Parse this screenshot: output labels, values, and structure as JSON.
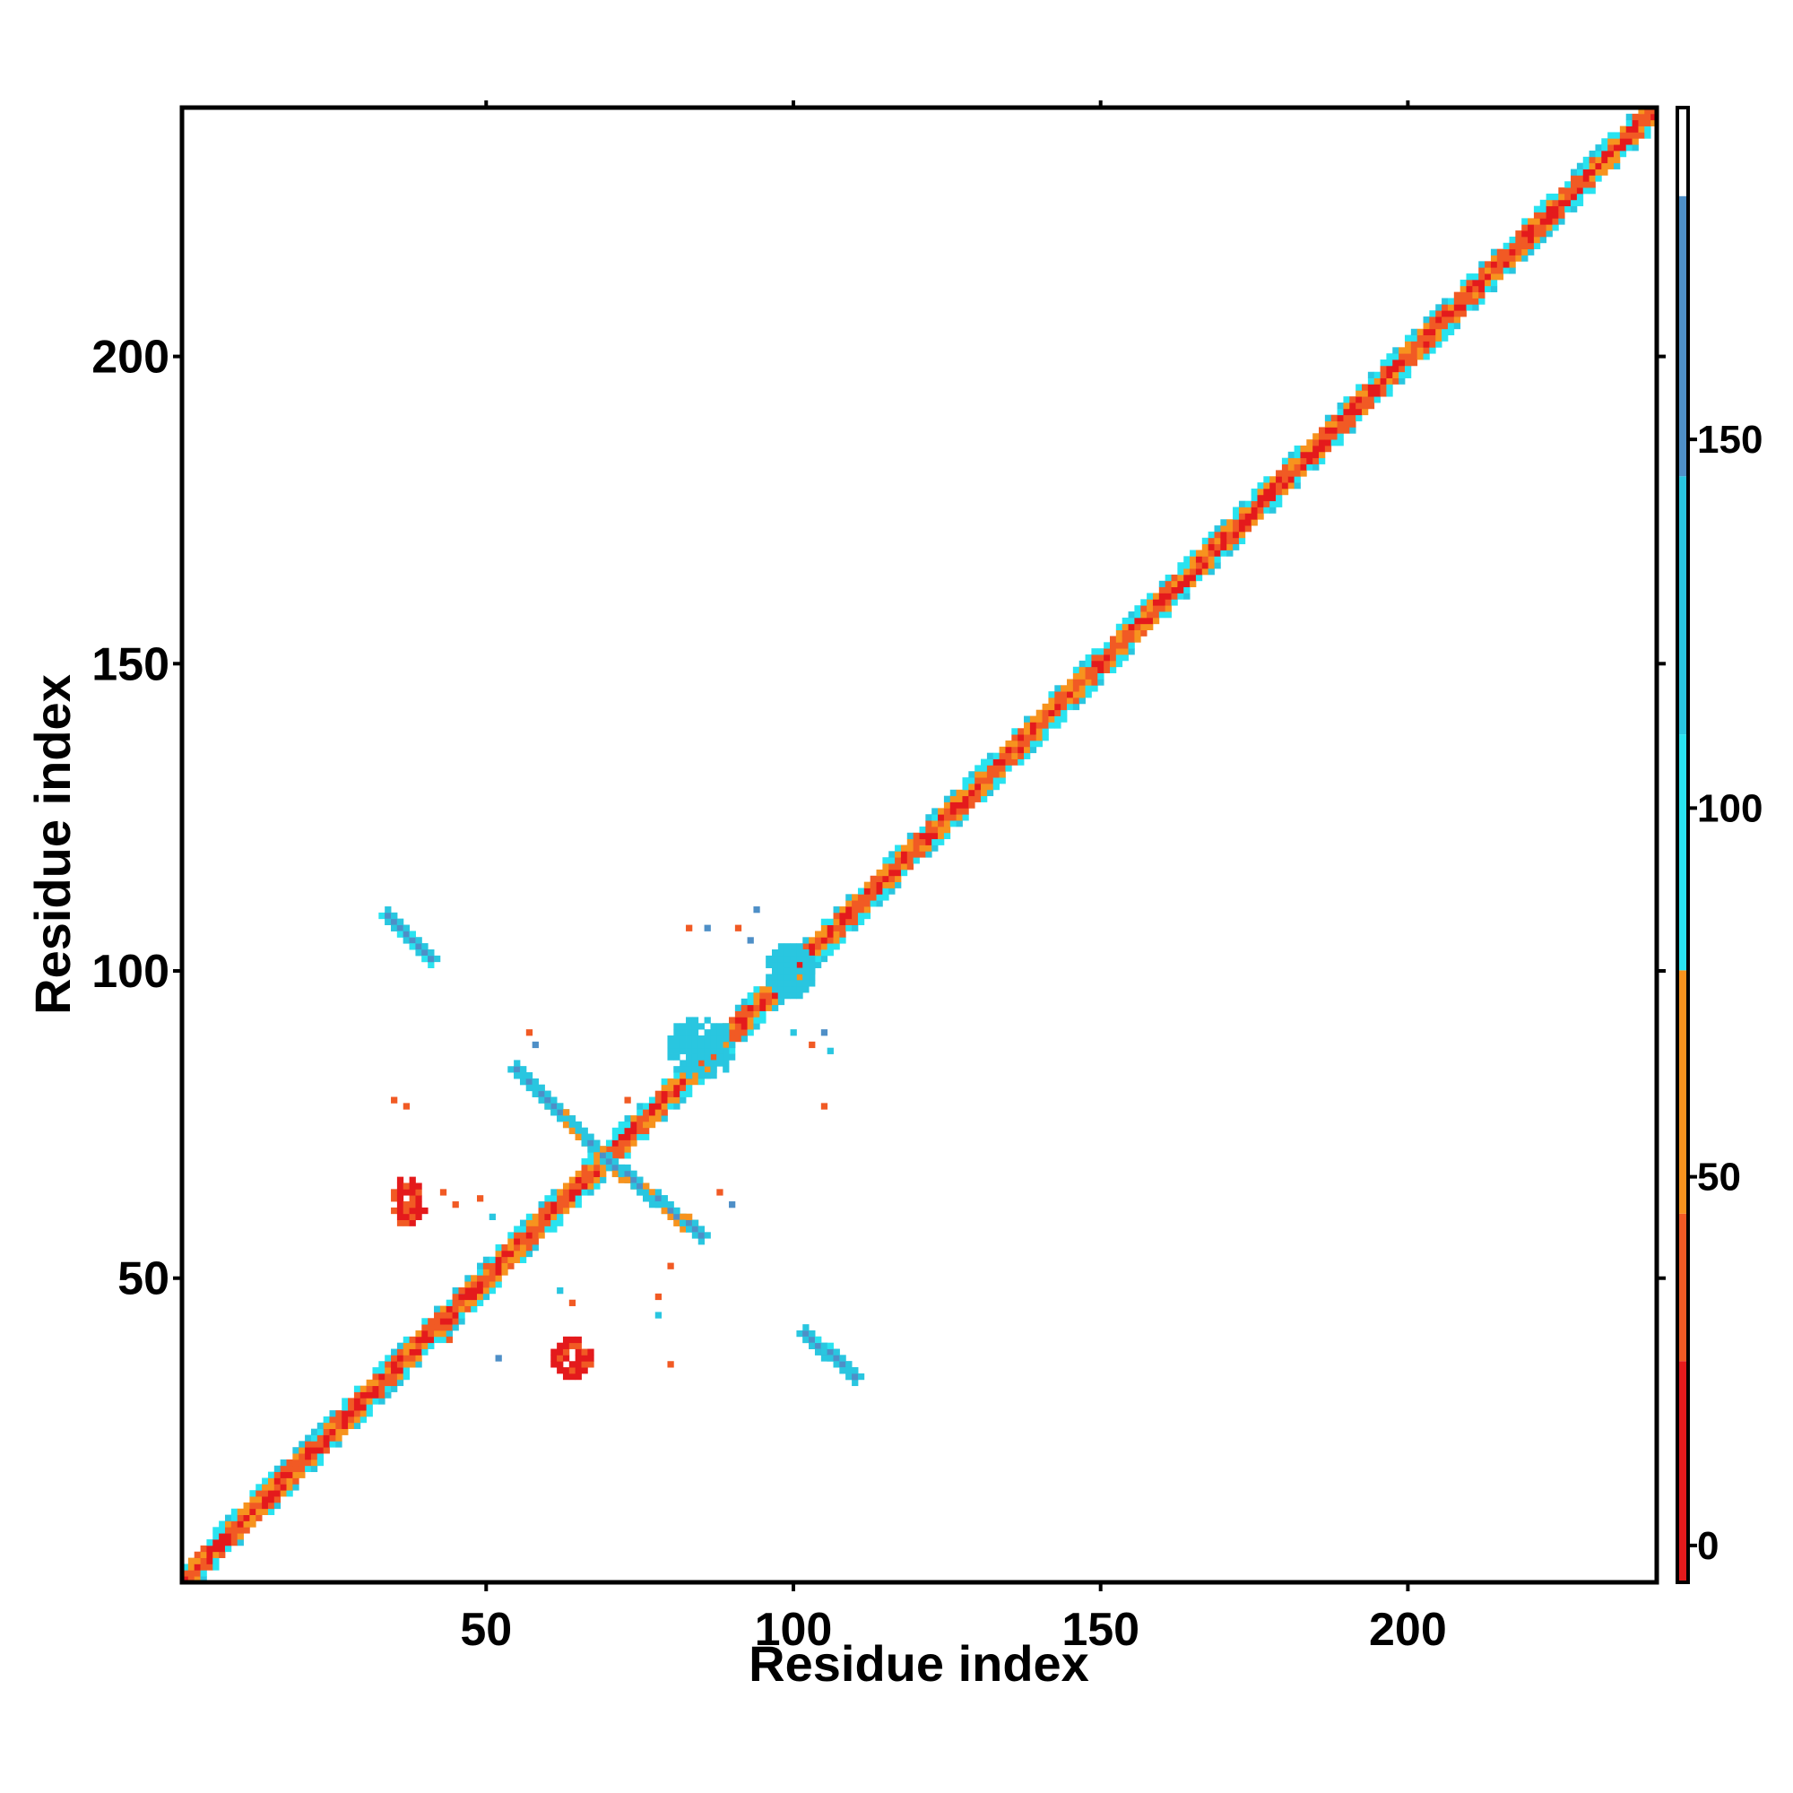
{
  "chart_data": {
    "type": "heatmap",
    "title": "",
    "xlabel": "Residue index",
    "ylabel": "Residue index",
    "xlim": [
      1,
      240
    ],
    "ylim": [
      1,
      240
    ],
    "xticks": [
      50,
      100,
      150,
      200
    ],
    "yticks": [
      50,
      100,
      150,
      200
    ],
    "grid": false,
    "colorbar": {
      "ticks": [
        0,
        50,
        100,
        150
      ],
      "range": [
        -5,
        195
      ],
      "colors": [
        {
          "from": -5,
          "to": 25,
          "color": "#e41a1c"
        },
        {
          "from": 25,
          "to": 45,
          "color": "#f15a24"
        },
        {
          "from": 45,
          "to": 78,
          "color": "#f7931e"
        },
        {
          "from": 78,
          "to": 110,
          "color": "#29e3f0"
        },
        {
          "from": 110,
          "to": 145,
          "color": "#29c6e0"
        },
        {
          "from": 145,
          "to": 183,
          "color": "#4e8fc7"
        },
        {
          "from": 183,
          "to": 195,
          "color": "#ffffff"
        }
      ]
    },
    "features": [
      {
        "kind": "diagonal",
        "from": 1,
        "to": 240,
        "band": "red-orange-cyan"
      },
      {
        "kind": "antidiagonal",
        "x": [
          55,
          70
        ],
        "y": [
          84,
          69
        ],
        "value": 150
      },
      {
        "kind": "antidiagonal",
        "x": [
          70,
          85
        ],
        "y": [
          69,
          57
        ],
        "value": 150
      },
      {
        "kind": "antidiagonal",
        "x": [
          34,
          41
        ],
        "y": [
          109,
          102
        ],
        "value": 160
      },
      {
        "kind": "antidiagonal",
        "x": [
          102,
          110
        ],
        "y": [
          41,
          34
        ],
        "value": 160
      },
      {
        "kind": "blob",
        "x": [
          35,
          40
        ],
        "y": [
          59,
          66
        ],
        "value": 5
      },
      {
        "kind": "blob",
        "x": [
          61,
          67
        ],
        "y": [
          34,
          40
        ],
        "value": 5
      },
      {
        "kind": "blob",
        "x": [
          96,
          103
        ],
        "y": [
          96,
          104
        ],
        "value": 110
      },
      {
        "kind": "blob",
        "x": [
          80,
          90
        ],
        "y": [
          83,
          92
        ],
        "value": 110
      }
    ]
  }
}
